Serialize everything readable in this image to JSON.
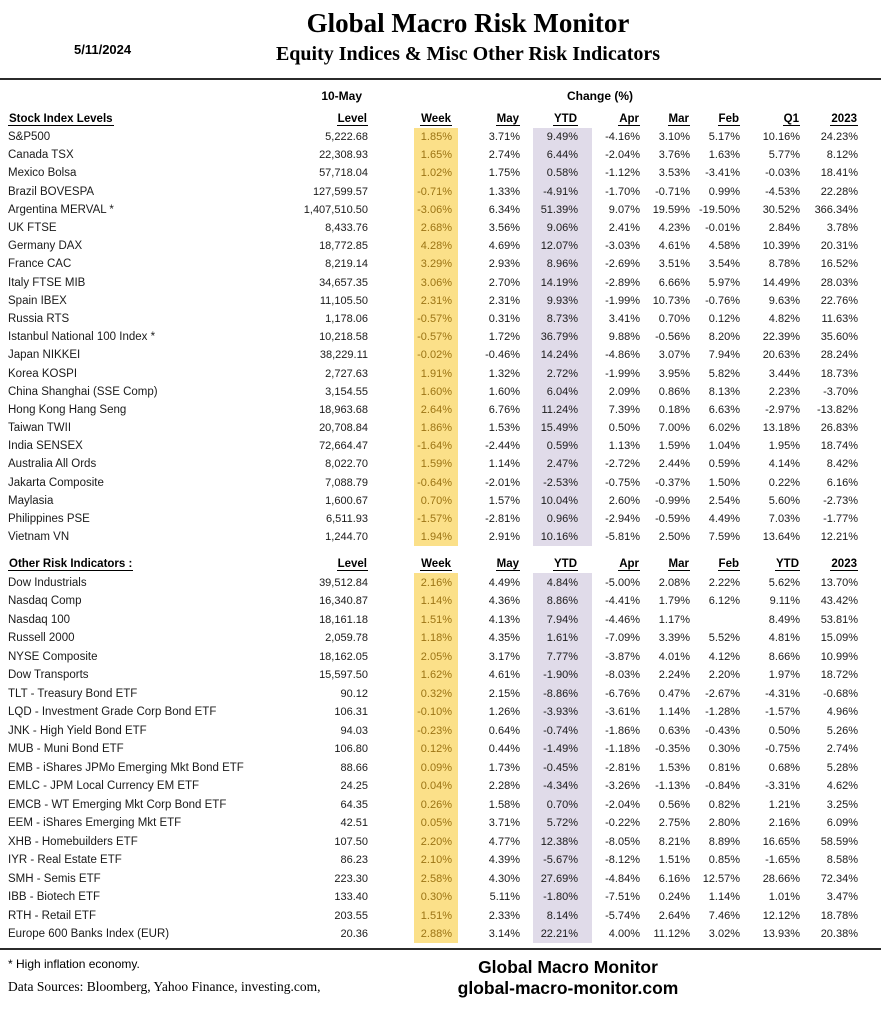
{
  "header": {
    "date": "5/11/2024",
    "title": "Global Macro Risk Monitor",
    "subtitle": "Equity Indices & Misc Other Risk Indicators"
  },
  "table": {
    "asof_label": "10-May",
    "change_label": "Change (%)",
    "section1": {
      "title": "Stock Index Levels",
      "columns": [
        "Level",
        "Week",
        "May",
        "YTD",
        "Apr",
        "Mar",
        "Feb",
        "Q1",
        "2023"
      ],
      "rows": [
        {
          "name": "S&P500",
          "level": "5,222.68",
          "values": [
            "1.85%",
            "3.71%",
            "9.49%",
            "-4.16%",
            "3.10%",
            "5.17%",
            "10.16%",
            "24.23%"
          ]
        },
        {
          "name": "Canada TSX",
          "level": "22,308.93",
          "values": [
            "1.65%",
            "2.74%",
            "6.44%",
            "-2.04%",
            "3.76%",
            "1.63%",
            "5.77%",
            "8.12%"
          ]
        },
        {
          "name": "Mexico Bolsa",
          "level": "57,718.04",
          "values": [
            "1.02%",
            "1.75%",
            "0.58%",
            "-1.12%",
            "3.53%",
            "-3.41%",
            "-0.03%",
            "18.41%"
          ]
        },
        {
          "name": "Brazil BOVESPA",
          "level": "127,599.57",
          "values": [
            "-0.71%",
            "1.33%",
            "-4.91%",
            "-1.70%",
            "-0.71%",
            "0.99%",
            "-4.53%",
            "22.28%"
          ]
        },
        {
          "name": "Argentina MERVAL *",
          "level": "1,407,510.50",
          "values": [
            "-3.06%",
            "6.34%",
            "51.39%",
            "9.07%",
            "19.59%",
            "-19.50%",
            "30.52%",
            "366.34%"
          ]
        },
        {
          "name": "UK FTSE",
          "level": "8,433.76",
          "values": [
            "2.68%",
            "3.56%",
            "9.06%",
            "2.41%",
            "4.23%",
            "-0.01%",
            "2.84%",
            "3.78%"
          ]
        },
        {
          "name": "Germany DAX",
          "level": "18,772.85",
          "values": [
            "4.28%",
            "4.69%",
            "12.07%",
            "-3.03%",
            "4.61%",
            "4.58%",
            "10.39%",
            "20.31%"
          ]
        },
        {
          "name": "France CAC",
          "level": "8,219.14",
          "values": [
            "3.29%",
            "2.93%",
            "8.96%",
            "-2.69%",
            "3.51%",
            "3.54%",
            "8.78%",
            "16.52%"
          ]
        },
        {
          "name": "Italy FTSE MIB",
          "level": "34,657.35",
          "values": [
            "3.06%",
            "2.70%",
            "14.19%",
            "-2.89%",
            "6.66%",
            "5.97%",
            "14.49%",
            "28.03%"
          ]
        },
        {
          "name": "Spain IBEX",
          "level": "11,105.50",
          "values": [
            "2.31%",
            "2.31%",
            "9.93%",
            "-1.99%",
            "10.73%",
            "-0.76%",
            "9.63%",
            "22.76%"
          ]
        },
        {
          "name": "Russia RTS",
          "level": "1,178.06",
          "values": [
            "-0.57%",
            "0.31%",
            "8.73%",
            "3.41%",
            "0.70%",
            "0.12%",
            "4.82%",
            "11.63%"
          ]
        },
        {
          "name": "Istanbul National 100 Index *",
          "level": "10,218.58",
          "values": [
            "-0.57%",
            "1.72%",
            "36.79%",
            "9.88%",
            "-0.56%",
            "8.20%",
            "22.39%",
            "35.60%"
          ]
        },
        {
          "name": "Japan NIKKEI",
          "level": "38,229.11",
          "values": [
            "-0.02%",
            "-0.46%",
            "14.24%",
            "-4.86%",
            "3.07%",
            "7.94%",
            "20.63%",
            "28.24%"
          ]
        },
        {
          "name": "Korea KOSPI",
          "level": "2,727.63",
          "values": [
            "1.91%",
            "1.32%",
            "2.72%",
            "-1.99%",
            "3.95%",
            "5.82%",
            "3.44%",
            "18.73%"
          ]
        },
        {
          "name": "China Shanghai (SSE Comp)",
          "level": "3,154.55",
          "values": [
            "1.60%",
            "1.60%",
            "6.04%",
            "2.09%",
            "0.86%",
            "8.13%",
            "2.23%",
            "-3.70%"
          ]
        },
        {
          "name": "Hong Kong Hang Seng",
          "level": "18,963.68",
          "values": [
            "2.64%",
            "6.76%",
            "11.24%",
            "7.39%",
            "0.18%",
            "6.63%",
            "-2.97%",
            "-13.82%"
          ]
        },
        {
          "name": "Taiwan  TWII",
          "level": "20,708.84",
          "values": [
            "1.86%",
            "1.53%",
            "15.49%",
            "0.50%",
            "7.00%",
            "6.02%",
            "13.18%",
            "26.83%"
          ]
        },
        {
          "name": "India SENSEX",
          "level": "72,664.47",
          "values": [
            "-1.64%",
            "-2.44%",
            "0.59%",
            "1.13%",
            "1.59%",
            "1.04%",
            "1.95%",
            "18.74%"
          ]
        },
        {
          "name": "Australia All Ords",
          "level": "8,022.70",
          "values": [
            "1.59%",
            "1.14%",
            "2.47%",
            "-2.72%",
            "2.44%",
            "0.59%",
            "4.14%",
            "8.42%"
          ]
        },
        {
          "name": "Jakarta Composite",
          "level": "7,088.79",
          "values": [
            "-0.64%",
            "-2.01%",
            "-2.53%",
            "-0.75%",
            "-0.37%",
            "1.50%",
            "0.22%",
            "6.16%"
          ]
        },
        {
          "name": "Maylasia",
          "level": "1,600.67",
          "values": [
            "0.70%",
            "1.57%",
            "10.04%",
            "2.60%",
            "-0.99%",
            "2.54%",
            "5.60%",
            "-2.73%"
          ]
        },
        {
          "name": "Philippines PSE",
          "level": "6,511.93",
          "values": [
            "-1.57%",
            "-2.81%",
            "0.96%",
            "-2.94%",
            "-0.59%",
            "4.49%",
            "7.03%",
            "-1.77%"
          ]
        },
        {
          "name": "Vietnam VN",
          "level": "1,244.70",
          "values": [
            "1.94%",
            "2.91%",
            "10.16%",
            "-5.81%",
            "2.50%",
            "7.59%",
            "13.64%",
            "12.21%"
          ]
        }
      ]
    },
    "section2": {
      "title": "Other Risk Indicators :",
      "columns": [
        "Level",
        "Week",
        "May",
        "YTD",
        "Apr",
        "Mar",
        "Feb",
        "YTD",
        "2023"
      ],
      "rows": [
        {
          "name": "Dow Industrials",
          "level": "39,512.84",
          "values": [
            "2.16%",
            "4.49%",
            "4.84%",
            "-5.00%",
            "2.08%",
            "2.22%",
            "5.62%",
            "13.70%"
          ]
        },
        {
          "name": "Nasdaq Comp",
          "level": "16,340.87",
          "values": [
            "1.14%",
            "4.36%",
            "8.86%",
            "-4.41%",
            "1.79%",
            "6.12%",
            "9.11%",
            "43.42%"
          ]
        },
        {
          "name": "Nasdaq 100",
          "level": "18,161.18",
          "values": [
            "1.51%",
            "4.13%",
            "7.94%",
            "-4.46%",
            "1.17%",
            "",
            "8.49%",
            "53.81%"
          ]
        },
        {
          "name": "Russell 2000",
          "level": "2,059.78",
          "values": [
            "1.18%",
            "4.35%",
            "1.61%",
            "-7.09%",
            "3.39%",
            "5.52%",
            "4.81%",
            "15.09%"
          ]
        },
        {
          "name": "NYSE Composite",
          "level": "18,162.05",
          "values": [
            "2.05%",
            "3.17%",
            "7.77%",
            "-3.87%",
            "4.01%",
            "4.12%",
            "8.66%",
            "10.99%"
          ]
        },
        {
          "name": "Dow Transports",
          "level": "15,597.50",
          "values": [
            "1.62%",
            "4.61%",
            "-1.90%",
            "-8.03%",
            "2.24%",
            "2.20%",
            "1.97%",
            "18.72%"
          ]
        },
        {
          "name": "TLT - Treasury Bond ETF",
          "level": "90.12",
          "values": [
            "0.32%",
            "2.15%",
            "-8.86%",
            "-6.76%",
            "0.47%",
            "-2.67%",
            "-4.31%",
            "-0.68%"
          ]
        },
        {
          "name": "LQD - Investment Grade Corp Bond ETF",
          "level": "106.31",
          "values": [
            "-0.10%",
            "1.26%",
            "-3.93%",
            "-3.61%",
            "1.14%",
            "-1.28%",
            "-1.57%",
            "4.96%"
          ]
        },
        {
          "name": "JNK - High Yield Bond ETF",
          "level": "94.03",
          "values": [
            "-0.23%",
            "0.64%",
            "-0.74%",
            "-1.86%",
            "0.63%",
            "-0.43%",
            "0.50%",
            "5.26%"
          ]
        },
        {
          "name": "MUB - Muni Bond ETF",
          "level": "106.80",
          "values": [
            "0.12%",
            "0.44%",
            "-1.49%",
            "-1.18%",
            "-0.35%",
            "0.30%",
            "-0.75%",
            "2.74%"
          ]
        },
        {
          "name": "EMB - iShares JPMo Emerging Mkt Bond ETF",
          "level": "88.66",
          "values": [
            "0.09%",
            "1.73%",
            "-0.45%",
            "-2.81%",
            "1.53%",
            "0.81%",
            "0.68%",
            "5.28%"
          ]
        },
        {
          "name": "EMLC - JPM Local Currency EM ETF",
          "level": "24.25",
          "values": [
            "0.04%",
            "2.28%",
            "-4.34%",
            "-3.26%",
            "-1.13%",
            "-0.84%",
            "-3.31%",
            "4.62%"
          ]
        },
        {
          "name": "EMCB - WT Emerging Mkt Corp Bond ETF",
          "level": "64.35",
          "values": [
            "0.26%",
            "1.58%",
            "0.70%",
            "-2.04%",
            "0.56%",
            "0.82%",
            "1.21%",
            "3.25%"
          ]
        },
        {
          "name": "EEM - iShares Emerging Mkt ETF",
          "level": "42.51",
          "values": [
            "0.05%",
            "3.71%",
            "5.72%",
            "-0.22%",
            "2.75%",
            "2.80%",
            "2.16%",
            "6.09%"
          ]
        },
        {
          "name": "XHB - Homebuilders ETF",
          "level": "107.50",
          "values": [
            "2.20%",
            "4.77%",
            "12.38%",
            "-8.05%",
            "8.21%",
            "8.89%",
            "16.65%",
            "58.59%"
          ]
        },
        {
          "name": "IYR - Real Estate ETF",
          "level": "86.23",
          "values": [
            "2.10%",
            "4.39%",
            "-5.67%",
            "-8.12%",
            "1.51%",
            "0.85%",
            "-1.65%",
            "8.58%"
          ]
        },
        {
          "name": "SMH - Semis ETF",
          "level": "223.30",
          "values": [
            "2.58%",
            "4.30%",
            "27.69%",
            "-4.84%",
            "6.16%",
            "12.57%",
            "28.66%",
            "72.34%"
          ]
        },
        {
          "name": "IBB - Biotech ETF",
          "level": "133.40",
          "values": [
            "0.30%",
            "5.11%",
            "-1.80%",
            "-7.51%",
            "0.24%",
            "1.14%",
            "1.01%",
            "3.47%"
          ]
        },
        {
          "name": "RTH - Retail ETF",
          "level": "203.55",
          "values": [
            "1.51%",
            "2.33%",
            "8.14%",
            "-5.74%",
            "2.64%",
            "7.46%",
            "12.12%",
            "18.78%"
          ]
        },
        {
          "name": "Europe 600 Banks Index (EUR)",
          "level": "20.36",
          "values": [
            "2.88%",
            "3.14%",
            "22.21%",
            "4.00%",
            "11.12%",
            "3.02%",
            "13.93%",
            "20.38%"
          ]
        }
      ]
    }
  },
  "footer": {
    "footnote": "* High inflation economy.",
    "data_sources": "Data Sources:  Bloomberg,  Yahoo Finance, investing.com,",
    "brand": "Global Macro Monitor",
    "website": "global-macro-monitor.com"
  },
  "colors": {
    "week_bg": "#FBE089",
    "week_text": "#9C7414",
    "ytd_bg": "#E0DBE9"
  }
}
